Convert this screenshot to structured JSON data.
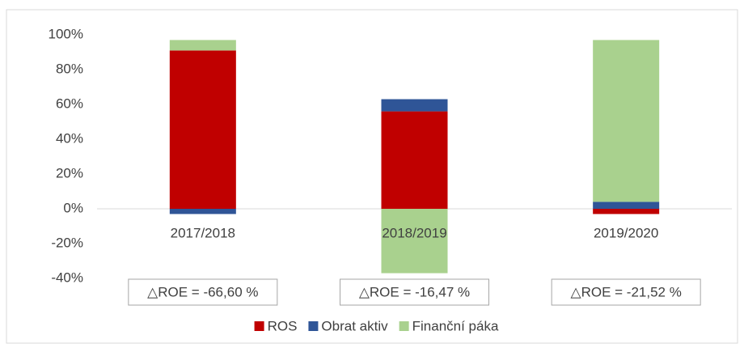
{
  "chart_data": {
    "type": "stacked_bar",
    "categories": [
      "2017/2018",
      "2018/2019",
      "2019/2020"
    ],
    "series": [
      {
        "name": "ROS",
        "color": "#c00000",
        "values": [
          91,
          56,
          -3
        ]
      },
      {
        "name": "Obrat aktiv",
        "color": "#2f5597",
        "values": [
          -3,
          7,
          4
        ]
      },
      {
        "name": "Finanční páka",
        "color": "#a9d18e",
        "values": [
          6,
          -37,
          93
        ]
      }
    ],
    "annotations": [
      "△ROE =  -66,60 %",
      "△ROE = -16,47 %",
      "△ROE = -21,52 %"
    ],
    "ylim": [
      -40,
      100
    ],
    "yticks": [
      {
        "value": -40,
        "label": "-40%"
      },
      {
        "value": -20,
        "label": "-20%"
      },
      {
        "value": 0,
        "label": "0%"
      },
      {
        "value": 20,
        "label": "20%"
      },
      {
        "value": 40,
        "label": "40%"
      },
      {
        "value": 60,
        "label": "60%"
      },
      {
        "value": 80,
        "label": "80%"
      },
      {
        "value": 100,
        "label": "100%"
      }
    ],
    "grid": false,
    "legend": "bottom"
  }
}
